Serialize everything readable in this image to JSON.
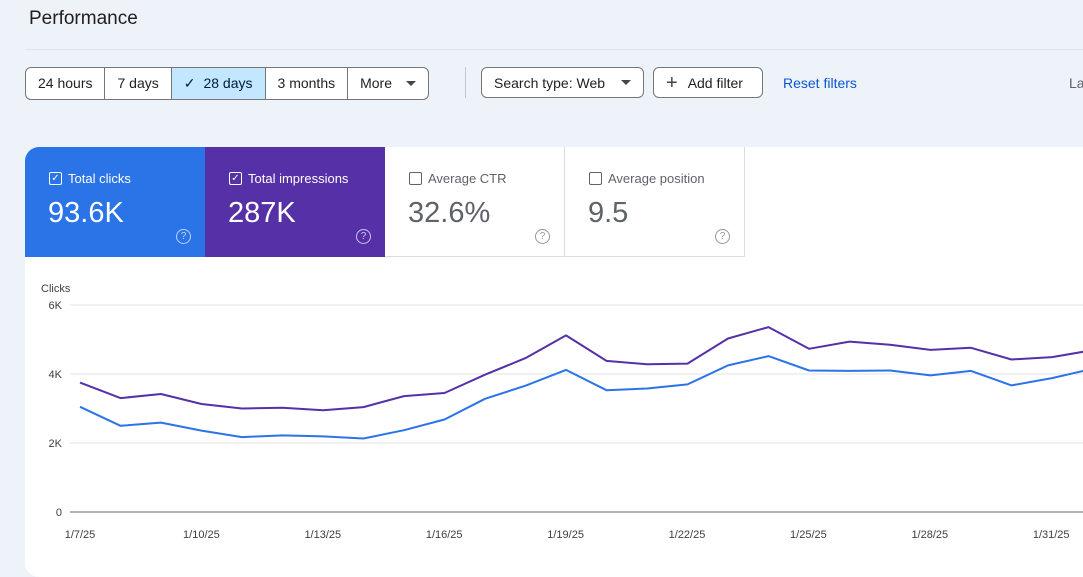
{
  "header": {
    "title": "Performance"
  },
  "date_ranges": [
    {
      "label": "24 hours",
      "selected": false
    },
    {
      "label": "7 days",
      "selected": false
    },
    {
      "label": "28 days",
      "selected": true
    },
    {
      "label": "3 months",
      "selected": false
    },
    {
      "label": "More",
      "selected": false
    }
  ],
  "filters": {
    "search_type": "Search type: Web",
    "add_filter": "Add filter",
    "reset": "Reset filters",
    "last_updated_truncated": "La"
  },
  "metrics": [
    {
      "label": "Total clicks",
      "value": "93.6K",
      "checked": true,
      "color": "#2a74e8"
    },
    {
      "label": "Total impressions",
      "value": "287K",
      "checked": true,
      "color": "#5630a6"
    },
    {
      "label": "Average CTR",
      "value": "32.6%",
      "checked": false
    },
    {
      "label": "Average position",
      "value": "9.5",
      "checked": false
    }
  ],
  "chart_data": {
    "type": "line",
    "ylabel": "Clicks",
    "y_ticks": [
      "6K",
      "4K",
      "2K",
      "0"
    ],
    "ylim": [
      0,
      6000
    ],
    "x_tick_labels": [
      "1/7/25",
      "1/10/25",
      "1/13/25",
      "1/16/25",
      "1/19/25",
      "1/22/25",
      "1/25/25",
      "1/28/25",
      "1/31/25"
    ],
    "x": [
      "1/7/25",
      "1/8/25",
      "1/9/25",
      "1/10/25",
      "1/11/25",
      "1/12/25",
      "1/13/25",
      "1/14/25",
      "1/15/25",
      "1/16/25",
      "1/17/25",
      "1/18/25",
      "1/19/25",
      "1/20/25",
      "1/21/25",
      "1/22/25",
      "1/23/25",
      "1/24/25",
      "1/25/25",
      "1/26/25",
      "1/27/25",
      "1/28/25",
      "1/29/25",
      "1/30/25",
      "1/31/25",
      "2/1/25"
    ],
    "series": [
      {
        "color": "#5630a6",
        "values": [
          3750,
          3300,
          3420,
          3130,
          3000,
          3020,
          2950,
          3040,
          3360,
          3450,
          3980,
          4460,
          5120,
          4380,
          4280,
          4300,
          5030,
          5360,
          4730,
          4940,
          4850,
          4700,
          4760,
          4420,
          4490,
          4690
        ]
      },
      {
        "color": "#2a74e8",
        "values": [
          3050,
          2500,
          2590,
          2360,
          2170,
          2220,
          2190,
          2130,
          2370,
          2680,
          3280,
          3660,
          4120,
          3530,
          3580,
          3700,
          4250,
          4520,
          4100,
          4090,
          4100,
          3960,
          4090,
          3670,
          3880,
          4150
        ]
      }
    ],
    "grid": true
  }
}
